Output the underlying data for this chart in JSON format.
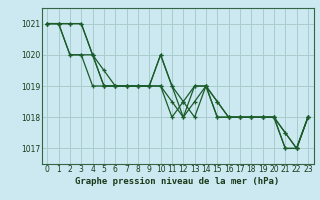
{
  "title": "Graphe pression niveau de la mer (hPa)",
  "bg_color": "#cce8f0",
  "grid_color": "#aacccc",
  "line_color": "#1a5c2a",
  "xlim": [
    -0.5,
    23.5
  ],
  "ylim": [
    1016.5,
    1021.5
  ],
  "yticks": [
    1017,
    1018,
    1019,
    1020,
    1021
  ],
  "xticks": [
    0,
    1,
    2,
    3,
    4,
    5,
    6,
    7,
    8,
    9,
    10,
    11,
    12,
    13,
    14,
    15,
    16,
    17,
    18,
    19,
    20,
    21,
    22,
    23
  ],
  "series": [
    [
      1021.0,
      1021.0,
      1021.0,
      1021.0,
      1020.0,
      1019.0,
      1019.0,
      1019.0,
      1019.0,
      1019.0,
      1020.0,
      1019.0,
      1018.0,
      1019.0,
      1019.0,
      1018.0,
      1018.0,
      1018.0,
      1018.0,
      1018.0,
      1018.0,
      1017.0,
      1017.0,
      1018.0
    ],
    [
      1021.0,
      1021.0,
      1020.0,
      1020.0,
      1020.0,
      1019.0,
      1019.0,
      1019.0,
      1019.0,
      1019.0,
      1019.0,
      1018.5,
      1018.0,
      1018.5,
      1019.0,
      1018.5,
      1018.0,
      1018.0,
      1018.0,
      1018.0,
      1018.0,
      1017.5,
      1017.0,
      1018.0
    ],
    [
      1021.0,
      1021.0,
      1021.0,
      1021.0,
      1020.0,
      1019.5,
      1019.0,
      1019.0,
      1019.0,
      1019.0,
      1020.0,
      1019.0,
      1018.5,
      1019.0,
      1019.0,
      1018.5,
      1018.0,
      1018.0,
      1018.0,
      1018.0,
      1018.0,
      1017.5,
      1017.0,
      1018.0
    ],
    [
      1021.0,
      1021.0,
      1020.0,
      1020.0,
      1019.0,
      1019.0,
      1019.0,
      1019.0,
      1019.0,
      1019.0,
      1019.0,
      1018.0,
      1018.5,
      1018.0,
      1019.0,
      1018.0,
      1018.0,
      1018.0,
      1018.0,
      1018.0,
      1018.0,
      1017.0,
      1017.0,
      1018.0
    ]
  ],
  "title_fontsize": 6.5,
  "tick_fontsize": 5.5,
  "xlabel_color": "#1a3a1a"
}
